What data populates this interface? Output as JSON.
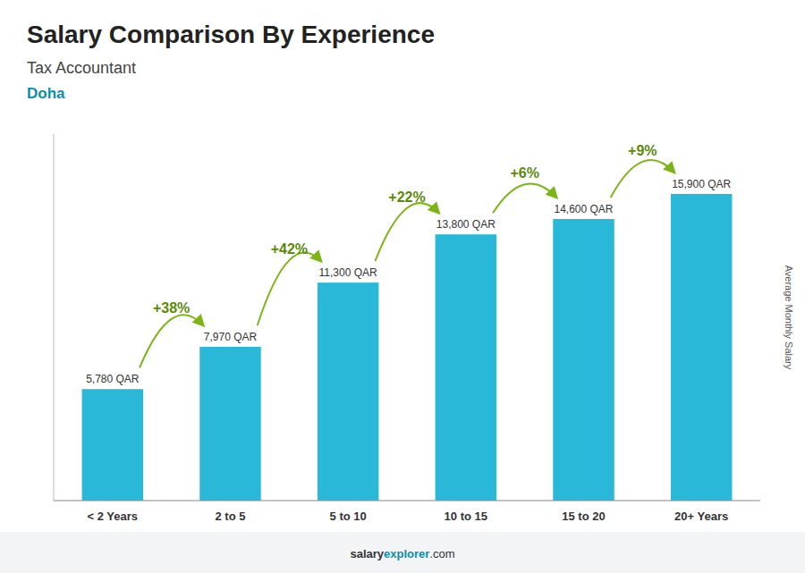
{
  "chart_data": {
    "type": "bar",
    "title": "Salary Comparison By Experience",
    "subtitle": [
      "Tax Accountant",
      "Doha"
    ],
    "ylabel": "Average Monthly Salary",
    "categories": [
      "< 2 Years",
      "2 to 5",
      "5 to 10",
      "10 to 15",
      "15 to 20",
      "20+ Years"
    ],
    "values": [
      5780,
      7970,
      11300,
      13800,
      14600,
      15900
    ],
    "value_labels": [
      "5,780 QAR",
      "7,970 QAR",
      "11,300 QAR",
      "13,800 QAR",
      "14,600 QAR",
      "15,900 QAR"
    ],
    "data_labels": true,
    "color": "#29b8d8",
    "ylim": [
      0,
      19000
    ],
    "yticks": [],
    "tick_labels": "x",
    "grid": false,
    "annotations": [
      "+38%",
      "+42%",
      "+22%",
      "+6%",
      "+9%"
    ],
    "footer": [
      "salary",
      "explorer",
      ".com"
    ]
  }
}
